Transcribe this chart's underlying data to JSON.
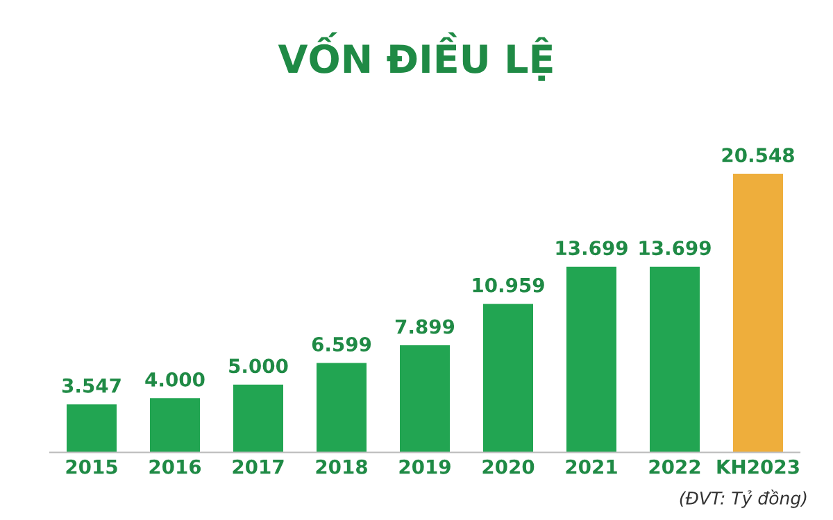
{
  "chart_data": {
    "type": "bar",
    "title": "VỐN ĐIỀU LỆ",
    "categories": [
      "2015",
      "2016",
      "2017",
      "2018",
      "2019",
      "2020",
      "2021",
      "2022",
      "KH2023"
    ],
    "values": [
      3547,
      4000,
      5000,
      6599,
      7899,
      10959,
      13699,
      13699,
      20548
    ],
    "value_labels": [
      "3.547",
      "4.000",
      "5.000",
      "6.599",
      "7.899",
      "10.959",
      "13.699",
      "13.699",
      "20.548"
    ],
    "colors": [
      "#22a552",
      "#22a552",
      "#22a552",
      "#22a552",
      "#22a552",
      "#22a552",
      "#22a552",
      "#22a552",
      "#eeae3c"
    ],
    "annotations": [
      "(ĐVT: Tỷ đồng)"
    ],
    "grid": false,
    "legend": false
  }
}
